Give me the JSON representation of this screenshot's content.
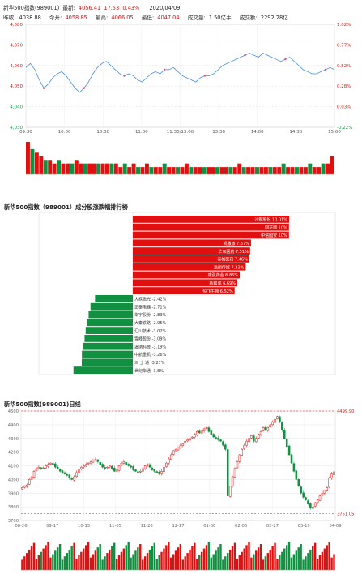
{
  "header": {
    "name": "新华500指数(989001)",
    "last_label": "最新:",
    "last_value": "4056.41",
    "change": "17.53",
    "change_pct": "0.43%",
    "date": "2020/04/09",
    "prev_close_label": "昨收:",
    "prev_close": "4038.88",
    "open_label": "今开:",
    "open": "4058.85",
    "high_label": "最高:",
    "high": "4066.05",
    "low_label": "最低:",
    "low": "4047.04",
    "volume_label": "成交量:",
    "volume": "1.50亿手",
    "amount_label": "成交额:",
    "amount": "2292.28亿"
  },
  "section2_title": "新华500指数（989001）成分股涨跌幅排行榜",
  "section3_title": "新华500指数(989001)日线",
  "colors": {
    "up": "#e01010",
    "down": "#109040",
    "line": "#4a90d9"
  },
  "chart_data": [
    {
      "type": "line",
      "id": "intraday",
      "y_left_ticks": [
        "4,080",
        "4,070",
        "4,060",
        "4,050",
        "4,040",
        "4,030"
      ],
      "y_right_ticks": [
        "1.02%",
        "0.77%",
        "0.52%",
        "0.28%",
        "0.03%",
        "-0.22%"
      ],
      "x_ticks": [
        "09:30",
        "10:00",
        "10:30",
        "11:00",
        "11:30/13:00",
        "13:30",
        "14:00",
        "14:30",
        "15:00"
      ],
      "ylim": [
        4030,
        4080
      ],
      "prev_close": 4038.88,
      "series": [
        {
          "values": [
            4059,
            4061,
            4058,
            4053,
            4049,
            4051,
            4054,
            4056,
            4057,
            4055,
            4052,
            4049,
            4047,
            4049,
            4052,
            4056,
            4059,
            4061,
            4062,
            4060,
            4058,
            4056,
            4055,
            4056,
            4055,
            4053,
            4052,
            4054,
            4056,
            4057,
            4056,
            4058,
            4058,
            4059,
            4057,
            4055,
            4054,
            4053,
            4052,
            4054,
            4055,
            4055,
            4056,
            4058,
            4060,
            4061,
            4062,
            4063,
            4064,
            4065,
            4066,
            4065,
            4064,
            4066,
            4065,
            4064,
            4063,
            4062,
            4063,
            4064,
            4062,
            4060,
            4058,
            4057,
            4056,
            4056,
            4057,
            4058,
            4059,
            4058
          ]
        }
      ],
      "volumes": [
        9,
        7,
        6,
        5,
        4,
        4,
        3,
        4,
        3,
        3,
        3,
        4,
        3,
        3,
        3,
        3,
        3,
        3,
        3,
        3,
        3,
        2,
        3,
        2,
        3,
        2,
        2,
        3,
        2,
        2,
        2,
        3,
        2,
        2,
        2,
        2,
        3,
        2,
        2,
        2,
        2,
        2,
        2,
        2,
        2,
        2,
        2,
        2,
        3,
        2,
        2,
        2,
        2,
        2,
        2,
        2,
        2,
        2,
        3,
        2,
        2,
        2,
        2,
        2,
        3,
        2,
        2,
        3,
        3,
        5
      ]
    },
    {
      "type": "bar",
      "id": "constituents",
      "orientation": "horizontal",
      "items": [
        {
          "name": "沙钢股份",
          "value": 10.01,
          "label": "沙钢股份 10.01%"
        },
        {
          "name": "同花顺",
          "value": 10.0,
          "label": "同花顺 10%"
        },
        {
          "name": "中信国安",
          "value": 10.0,
          "label": "中信国安 10%"
        },
        {
          "name": "凯撒旅",
          "value": 7.57,
          "label": "凯撒旅 7.57%"
        },
        {
          "name": "华东医药",
          "value": 7.51,
          "label": "华东医药 7.51%"
        },
        {
          "name": "泰格医药",
          "value": 7.46,
          "label": "泰格医药 7.46%"
        },
        {
          "name": "浩丽传媒",
          "value": 7.23,
          "label": "浩丽传媒 7.23%"
        },
        {
          "name": "康弘药业",
          "value": 6.85,
          "label": "康弘药业 6.85%"
        },
        {
          "name": "新和成",
          "value": 6.69,
          "label": "新和成 6.69%"
        },
        {
          "name": "恒飞生物",
          "value": 6.52,
          "label": "恒飞生物 6.52%"
        },
        {
          "name": "大族激光",
          "value": -2.42,
          "label": "大族激光 -2.42%"
        },
        {
          "name": "正泰电器",
          "value": -2.71,
          "label": "正泰电器 -2.71%"
        },
        {
          "name": "华宇股份",
          "value": -2.83,
          "label": "华宇股份 -2.83%"
        },
        {
          "name": "大秦铁路",
          "value": -2.95,
          "label": "大秦铁路 -2.95%"
        },
        {
          "name": "汇川技术",
          "value": -3.02,
          "label": "汇川技术 -3.02%"
        },
        {
          "name": "雪峰股份",
          "value": -3.09,
          "label": "雪峰股份 -3.09%"
        },
        {
          "name": "温纳科技",
          "value": -3.19,
          "label": "温纳科技 -3.19%"
        },
        {
          "name": "中航重机",
          "value": -3.26,
          "label": "中航重机 -3.26%"
        },
        {
          "name": "三 士 通",
          "value": -3.27,
          "label": "三 士 通 -3.27%"
        },
        {
          "name": "世纪华通",
          "value": -3.8,
          "label": "世纪华通 -3.8%"
        }
      ]
    },
    {
      "type": "candlestick",
      "id": "daily",
      "y_ticks": [
        "4500",
        "4400",
        "4300",
        "4200",
        "4100",
        "4000",
        "3900",
        "3800",
        "3700"
      ],
      "x_ticks": [
        "08-26",
        "09-17",
        "10-15",
        "11-05",
        "11-26",
        "12-17",
        "01-08",
        "02-06",
        "02-27",
        "03-19",
        "04-09"
      ],
      "ylim": [
        3700,
        4500
      ],
      "high_mark": "4499.90",
      "low_mark": "3751.05",
      "closes": [
        3940,
        3950,
        3960,
        4000,
        4020,
        4060,
        4080,
        4090,
        4080,
        4085,
        4100,
        4110,
        4120,
        4110,
        4090,
        4080,
        4060,
        4050,
        4040,
        4030,
        4010,
        4000,
        4020,
        4050,
        4070,
        4090,
        4100,
        4110,
        4120,
        4130,
        4140,
        4145,
        4130,
        4110,
        4090,
        4080,
        4090,
        4100,
        4080,
        4060,
        4070,
        4100,
        4120,
        4130,
        4110,
        4100,
        4090,
        4070,
        4060,
        4050,
        4060,
        4080,
        4100,
        4110,
        4090,
        4070,
        4060,
        4050,
        4040,
        4060,
        4090,
        4120,
        4150,
        4180,
        4210,
        4220,
        4230,
        4250,
        4260,
        4280,
        4290,
        4300,
        4310,
        4330,
        4350,
        4340,
        4360,
        4370,
        4380,
        4350,
        4330,
        4310,
        4300,
        4290,
        4280,
        4250,
        4220,
        3880,
        3950,
        4020,
        4080,
        4130,
        4180,
        4220,
        4250,
        4280,
        4300,
        4320,
        4280,
        4300,
        4330,
        4350,
        4380,
        4360,
        4380,
        4400,
        4420,
        4440,
        4460,
        4420,
        4360,
        4300,
        4240,
        4180,
        4120,
        4060,
        4000,
        3950,
        3900,
        3870,
        3850,
        3820,
        3790,
        3800,
        3830,
        3850,
        3880,
        3900,
        3920,
        3940,
        4010,
        4040,
        4056
      ]
    }
  ]
}
